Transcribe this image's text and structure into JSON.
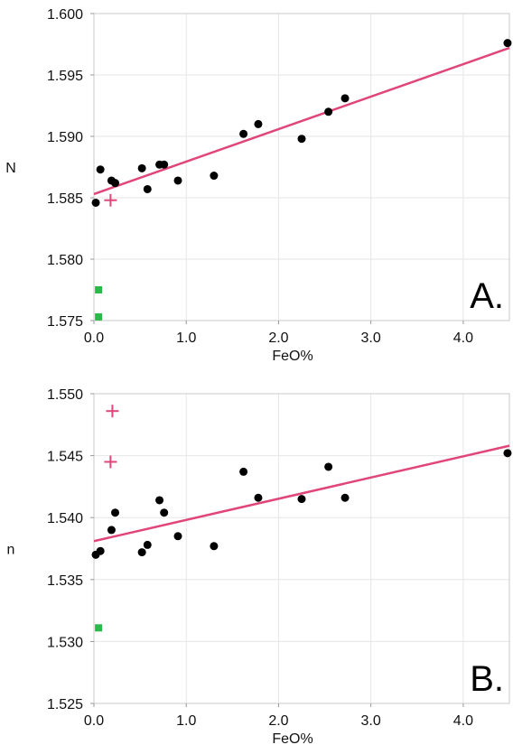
{
  "chart_data": [
    {
      "type": "scatter",
      "panel_label": "A.",
      "xlabel": "FeO%",
      "ylabel": "N",
      "xlim": [
        0,
        4.5
      ],
      "ylim": [
        1.575,
        1.6
      ],
      "x_ticks": [
        "0.0",
        "1.0",
        "2.0",
        "3.0",
        "4.0"
      ],
      "x_tick_values": [
        0,
        1,
        2,
        3,
        4
      ],
      "y_ticks": [
        "1.575",
        "1.580",
        "1.585",
        "1.590",
        "1.595",
        "1.600"
      ],
      "y_tick_values": [
        1.575,
        1.58,
        1.585,
        1.59,
        1.595,
        1.6
      ],
      "grid": true,
      "colors": {
        "points": "#000000",
        "trend": "#e0457b",
        "cross": "#e0457b",
        "square": "#2db84a"
      },
      "series": [
        {
          "marker": "circle",
          "points": [
            [
              0.02,
              1.5846
            ],
            [
              0.07,
              1.5873
            ],
            [
              0.19,
              1.5864
            ],
            [
              0.23,
              1.5862
            ],
            [
              0.52,
              1.5874
            ],
            [
              0.58,
              1.5857
            ],
            [
              0.71,
              1.5877
            ],
            [
              0.76,
              1.5877
            ],
            [
              0.91,
              1.5864
            ],
            [
              1.3,
              1.5868
            ],
            [
              1.62,
              1.5902
            ],
            [
              1.78,
              1.591
            ],
            [
              2.25,
              1.5898
            ],
            [
              2.54,
              1.592
            ],
            [
              2.72,
              1.5931
            ],
            [
              4.48,
              1.5976
            ]
          ]
        },
        {
          "marker": "cross",
          "points": [
            [
              0.18,
              1.5848
            ]
          ]
        },
        {
          "marker": "square",
          "points": [
            [
              0.05,
              1.5775
            ],
            [
              0.05,
              1.5753
            ]
          ]
        }
      ],
      "trendline": [
        [
          0.0,
          1.5853
        ],
        [
          4.5,
          1.5972
        ]
      ]
    },
    {
      "type": "scatter",
      "panel_label": "B.",
      "xlabel": "FeO%",
      "ylabel": "n",
      "xlim": [
        0,
        4.5
      ],
      "ylim": [
        1.525,
        1.55
      ],
      "x_ticks": [
        "0.0",
        "1.0",
        "2.0",
        "3.0",
        "4.0"
      ],
      "x_tick_values": [
        0,
        1,
        2,
        3,
        4
      ],
      "y_ticks": [
        "1.525",
        "1.530",
        "1.535",
        "1.540",
        "1.545",
        "1.550"
      ],
      "y_tick_values": [
        1.525,
        1.53,
        1.535,
        1.54,
        1.545,
        1.55
      ],
      "grid": true,
      "colors": {
        "points": "#000000",
        "trend": "#e0457b",
        "cross": "#e0457b",
        "square": "#2db84a"
      },
      "series": [
        {
          "marker": "circle",
          "points": [
            [
              0.02,
              1.537
            ],
            [
              0.07,
              1.5373
            ],
            [
              0.19,
              1.539
            ],
            [
              0.23,
              1.5404
            ],
            [
              0.52,
              1.5372
            ],
            [
              0.58,
              1.5378
            ],
            [
              0.71,
              1.5414
            ],
            [
              0.76,
              1.5404
            ],
            [
              0.91,
              1.5385
            ],
            [
              1.3,
              1.5377
            ],
            [
              1.62,
              1.5437
            ],
            [
              1.78,
              1.5416
            ],
            [
              2.25,
              1.5415
            ],
            [
              2.54,
              1.5441
            ],
            [
              2.72,
              1.5416
            ],
            [
              4.48,
              1.5452
            ]
          ]
        },
        {
          "marker": "cross",
          "points": [
            [
              0.2,
              1.5486
            ],
            [
              0.18,
              1.5445
            ]
          ]
        },
        {
          "marker": "square",
          "points": [
            [
              0.05,
              1.5311
            ]
          ]
        }
      ],
      "trendline": [
        [
          0.0,
          1.5381
        ],
        [
          4.5,
          1.5458
        ]
      ]
    }
  ]
}
